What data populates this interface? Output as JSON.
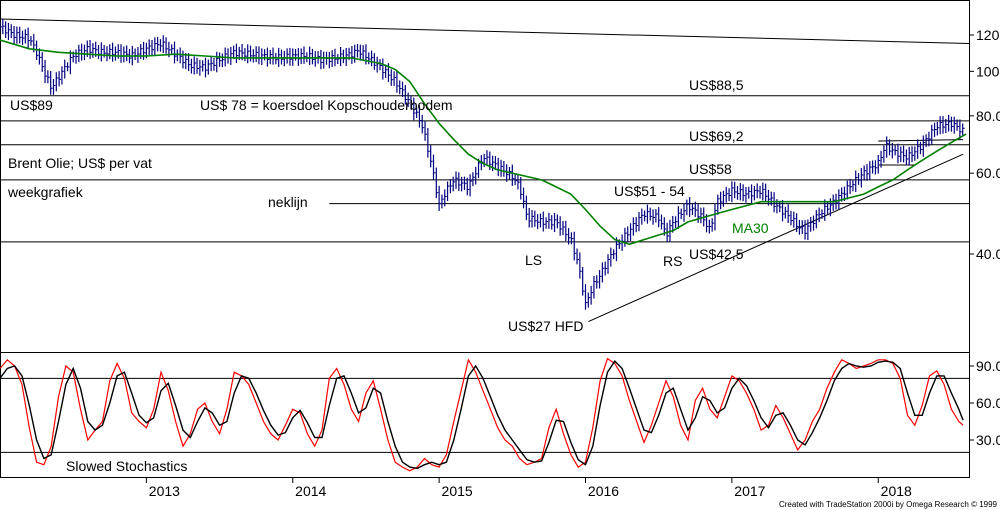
{
  "chart_data": [
    {
      "type": "line",
      "y_scale": "log",
      "ylim": [
        25,
        140
      ],
      "y_ticks": [
        "120",
        "100",
        "80.0",
        "60.0",
        "40.0"
      ],
      "y_tick_values": [
        120,
        100,
        80,
        60,
        40
      ],
      "x_ticks": [
        "2013",
        "2014",
        "2015",
        "2016",
        "2017",
        "2018"
      ],
      "x_tick_values": [
        2013,
        2014,
        2015,
        2016,
        2017,
        2018
      ],
      "xlim": [
        2012.0,
        2018.62
      ],
      "grid": false,
      "series": [
        {
          "name": "",
          "style": "price-bars",
          "color": "#000080",
          "x": [
            2012.0,
            2012.1,
            2012.2,
            2012.25,
            2012.3,
            2012.35,
            2012.4,
            2012.5,
            2012.6,
            2012.7,
            2012.8,
            2012.9,
            2013.0,
            2013.1,
            2013.2,
            2013.3,
            2013.4,
            2013.5,
            2013.6,
            2013.7,
            2013.8,
            2013.9,
            2014.0,
            2014.1,
            2014.2,
            2014.3,
            2014.4,
            2014.45,
            2014.5,
            2014.6,
            2014.7,
            2014.8,
            2014.88,
            2014.95,
            2015.0,
            2015.05,
            2015.1,
            2015.2,
            2015.3,
            2015.4,
            2015.5,
            2015.55,
            2015.6,
            2015.7,
            2015.8,
            2015.9,
            2015.95,
            2016.0,
            2016.05,
            2016.1,
            2016.2,
            2016.3,
            2016.4,
            2016.5,
            2016.55,
            2016.6,
            2016.7,
            2016.8,
            2016.85,
            2016.9,
            2017.0,
            2017.1,
            2017.2,
            2017.3,
            2017.4,
            2017.45,
            2017.5,
            2017.6,
            2017.7,
            2017.8,
            2017.9,
            2018.0,
            2018.05,
            2018.1,
            2018.2,
            2018.3,
            2018.4,
            2018.5,
            2018.58
          ],
          "values": [
            125,
            120,
            118,
            110,
            100,
            92,
            97,
            108,
            112,
            110,
            110,
            108,
            112,
            115,
            109,
            103,
            102,
            106,
            110,
            109,
            108,
            107,
            108,
            108,
            106,
            107,
            109,
            111,
            108,
            102,
            95,
            85,
            77,
            62,
            51,
            55,
            58,
            56,
            65,
            62,
            59,
            56,
            48,
            47,
            47,
            43,
            38,
            31,
            34,
            36,
            41,
            45,
            49,
            48,
            44,
            47,
            51,
            48,
            45,
            52,
            55,
            54,
            55,
            51,
            48,
            46,
            45,
            49,
            52,
            56,
            60,
            63,
            69,
            67,
            65,
            69,
            76,
            77,
            74
          ]
        },
        {
          "name": "MA30",
          "color": "#008000",
          "x": [
            2012.0,
            2012.2,
            2012.4,
            2012.6,
            2012.8,
            2013.0,
            2013.2,
            2013.4,
            2013.6,
            2013.8,
            2014.0,
            2014.2,
            2014.4,
            2014.6,
            2014.7,
            2014.8,
            2014.9,
            2015.0,
            2015.1,
            2015.2,
            2015.3,
            2015.4,
            2015.5,
            2015.6,
            2015.7,
            2015.8,
            2015.9,
            2016.0,
            2016.1,
            2016.2,
            2016.3,
            2016.4,
            2016.5,
            2016.6,
            2016.7,
            2016.8,
            2016.9,
            2017.0,
            2017.1,
            2017.2,
            2017.3,
            2017.4,
            2017.5,
            2017.6,
            2017.7,
            2017.8,
            2017.9,
            2018.0,
            2018.1,
            2018.2,
            2018.3,
            2018.4,
            2018.5,
            2018.6
          ],
          "values": [
            117,
            112,
            110,
            109,
            108,
            108,
            109,
            108,
            107,
            107,
            107,
            107,
            107,
            104,
            101,
            95,
            85,
            77,
            71,
            66,
            63,
            61,
            60,
            59,
            58,
            56,
            54,
            50,
            46,
            43,
            42,
            43,
            44,
            45,
            47,
            48,
            49,
            50,
            51,
            52,
            52,
            52,
            52,
            52,
            52,
            53,
            54,
            56,
            58,
            61,
            64,
            67,
            70,
            73
          ]
        },
        {
          "name": "",
          "style": "horizontal-line",
          "color": "#000000",
          "x": [
            2012.0,
            2018.62
          ],
          "values": [
            88.5,
            88.5
          ]
        },
        {
          "name": "",
          "style": "horizontal-line",
          "color": "#000000",
          "x": [
            2012.0,
            2018.62
          ],
          "values": [
            78,
            78
          ]
        },
        {
          "name": "",
          "style": "horizontal-line",
          "color": "#000000",
          "x": [
            2012.0,
            2018.62
          ],
          "values": [
            69.2,
            69.2
          ]
        },
        {
          "name": "",
          "style": "horizontal-line",
          "color": "#000000",
          "x": [
            2012.0,
            2018.62
          ],
          "values": [
            58,
            58
          ]
        },
        {
          "name": "",
          "style": "horizontal-line",
          "color": "#000000",
          "x": [
            2014.25,
            2018.62
          ],
          "values": [
            51.5,
            51.5
          ]
        },
        {
          "name": "",
          "style": "horizontal-line",
          "color": "#000000",
          "x": [
            2012.0,
            2018.62
          ],
          "values": [
            42.5,
            42.5
          ]
        },
        {
          "name": "",
          "style": "trend-line",
          "color": "#000000",
          "x": [
            2012.0,
            2018.62
          ],
          "values": [
            130,
            115
          ]
        },
        {
          "name": "",
          "style": "trend-line",
          "color": "#000000",
          "x": [
            2016.02,
            2018.58
          ],
          "values": [
            28.5,
            66
          ]
        },
        {
          "name": "",
          "style": "trend-line",
          "color": "#000000",
          "x": [
            2018.0,
            2018.58
          ],
          "values": [
            70.5,
            71
          ]
        },
        {
          "name": "",
          "style": "trend-line",
          "color": "#000000",
          "x": [
            2018.0,
            2018.25
          ],
          "values": [
            62.5,
            62.5
          ]
        }
      ],
      "annotations": [
        {
          "text": "US$89"
        },
        {
          "text": "US$ 78 = koersdoel Kopschouderbodem"
        },
        {
          "text": "Brent Olie; US$ per vat"
        },
        {
          "text": "weekgrafiek"
        },
        {
          "text": "neklijn"
        },
        {
          "text": "US$88,5"
        },
        {
          "text": "US$69,2"
        },
        {
          "text": "US$58"
        },
        {
          "text": "US$51 - 54"
        },
        {
          "text": "MA30"
        },
        {
          "text": "US$42,5"
        },
        {
          "text": "LS"
        },
        {
          "text": "RS"
        },
        {
          "text": "US$27 HFD"
        }
      ]
    },
    {
      "type": "line",
      "ylim": [
        0,
        100
      ],
      "y_ticks": [
        "90.0",
        "60.0",
        "30.0"
      ],
      "y_tick_values": [
        90,
        60,
        30
      ],
      "xlim": [
        2012.0,
        2018.62
      ],
      "levels": [
        80,
        20
      ],
      "series": [
        {
          "name": "",
          "color": "#ff0000",
          "x": [
            2012.0,
            2012.05,
            2012.1,
            2012.15,
            2012.2,
            2012.25,
            2012.3,
            2012.35,
            2012.4,
            2012.45,
            2012.5,
            2012.55,
            2012.6,
            2012.65,
            2012.7,
            2012.75,
            2012.8,
            2012.85,
            2012.9,
            2012.95,
            2013.0,
            2013.05,
            2013.1,
            2013.15,
            2013.2,
            2013.25,
            2013.3,
            2013.35,
            2013.4,
            2013.45,
            2013.5,
            2013.55,
            2013.6,
            2013.65,
            2013.7,
            2013.75,
            2013.8,
            2013.85,
            2013.9,
            2013.95,
            2014.0,
            2014.05,
            2014.1,
            2014.15,
            2014.2,
            2014.25,
            2014.3,
            2014.35,
            2014.4,
            2014.45,
            2014.5,
            2014.55,
            2014.6,
            2014.65,
            2014.7,
            2014.75,
            2014.8,
            2014.85,
            2014.9,
            2014.95,
            2015.0,
            2015.05,
            2015.1,
            2015.15,
            2015.2,
            2015.25,
            2015.3,
            2015.35,
            2015.4,
            2015.45,
            2015.5,
            2015.55,
            2015.6,
            2015.65,
            2015.7,
            2015.75,
            2015.8,
            2015.85,
            2015.9,
            2015.95,
            2016.0,
            2016.05,
            2016.1,
            2016.15,
            2016.2,
            2016.25,
            2016.3,
            2016.35,
            2016.4,
            2016.45,
            2016.5,
            2016.55,
            2016.6,
            2016.65,
            2016.7,
            2016.75,
            2016.8,
            2016.85,
            2016.9,
            2016.95,
            2017.0,
            2017.05,
            2017.1,
            2017.15,
            2017.2,
            2017.25,
            2017.3,
            2017.35,
            2017.4,
            2017.45,
            2017.5,
            2017.55,
            2017.6,
            2017.65,
            2017.7,
            2017.75,
            2017.8,
            2017.85,
            2017.9,
            2017.95,
            2018.0,
            2018.05,
            2018.1,
            2018.15,
            2018.2,
            2018.25,
            2018.3,
            2018.35,
            2018.4,
            2018.45,
            2018.5,
            2018.55,
            2018.58
          ],
          "values": [
            88,
            95,
            90,
            75,
            40,
            12,
            10,
            25,
            65,
            90,
            85,
            55,
            30,
            38,
            45,
            78,
            92,
            80,
            52,
            45,
            40,
            55,
            85,
            70,
            45,
            25,
            35,
            55,
            60,
            45,
            35,
            55,
            85,
            82,
            75,
            60,
            45,
            35,
            30,
            42,
            55,
            52,
            35,
            25,
            38,
            80,
            88,
            75,
            55,
            45,
            68,
            78,
            55,
            30,
            12,
            8,
            5,
            8,
            15,
            10,
            8,
            18,
            45,
            70,
            95,
            85,
            70,
            55,
            40,
            30,
            25,
            15,
            10,
            12,
            15,
            40,
            55,
            35,
            18,
            8,
            12,
            40,
            78,
            96,
            92,
            82,
            62,
            45,
            28,
            42,
            60,
            78,
            65,
            42,
            30,
            62,
            72,
            55,
            48,
            65,
            82,
            78,
            68,
            55,
            38,
            42,
            58,
            48,
            35,
            22,
            30,
            45,
            55,
            72,
            85,
            95,
            92,
            88,
            90,
            92,
            95,
            95,
            92,
            80,
            50,
            42,
            58,
            82,
            86,
            75,
            55,
            45,
            42
          ]
        },
        {
          "name": "",
          "color": "#000000",
          "x": [
            2012.0,
            2012.05,
            2012.1,
            2012.15,
            2012.2,
            2012.25,
            2012.3,
            2012.35,
            2012.4,
            2012.45,
            2012.5,
            2012.55,
            2012.6,
            2012.65,
            2012.7,
            2012.75,
            2012.8,
            2012.85,
            2012.9,
            2012.95,
            2013.0,
            2013.05,
            2013.1,
            2013.15,
            2013.2,
            2013.25,
            2013.3,
            2013.35,
            2013.4,
            2013.45,
            2013.5,
            2013.55,
            2013.6,
            2013.65,
            2013.7,
            2013.75,
            2013.8,
            2013.85,
            2013.9,
            2013.95,
            2014.0,
            2014.05,
            2014.1,
            2014.15,
            2014.2,
            2014.25,
            2014.3,
            2014.35,
            2014.4,
            2014.45,
            2014.5,
            2014.55,
            2014.6,
            2014.65,
            2014.7,
            2014.75,
            2014.8,
            2014.85,
            2014.9,
            2014.95,
            2015.0,
            2015.05,
            2015.1,
            2015.15,
            2015.2,
            2015.25,
            2015.3,
            2015.35,
            2015.4,
            2015.45,
            2015.5,
            2015.55,
            2015.6,
            2015.65,
            2015.7,
            2015.75,
            2015.8,
            2015.85,
            2015.9,
            2015.95,
            2016.0,
            2016.05,
            2016.1,
            2016.15,
            2016.2,
            2016.25,
            2016.3,
            2016.35,
            2016.4,
            2016.45,
            2016.5,
            2016.55,
            2016.6,
            2016.65,
            2016.7,
            2016.75,
            2016.8,
            2016.85,
            2016.9,
            2016.95,
            2017.0,
            2017.05,
            2017.1,
            2017.15,
            2017.2,
            2017.25,
            2017.3,
            2017.35,
            2017.4,
            2017.45,
            2017.5,
            2017.55,
            2017.6,
            2017.65,
            2017.7,
            2017.75,
            2017.8,
            2017.85,
            2017.9,
            2017.95,
            2018.0,
            2018.05,
            2018.1,
            2018.15,
            2018.2,
            2018.25,
            2018.3,
            2018.35,
            2018.4,
            2018.45,
            2018.5,
            2018.55,
            2018.58
          ],
          "values": [
            80,
            88,
            90,
            82,
            58,
            30,
            15,
            18,
            45,
            75,
            88,
            72,
            45,
            38,
            42,
            60,
            82,
            85,
            68,
            50,
            44,
            48,
            70,
            76,
            58,
            38,
            32,
            45,
            56,
            52,
            42,
            45,
            68,
            82,
            80,
            68,
            54,
            42,
            34,
            36,
            48,
            54,
            44,
            32,
            32,
            58,
            80,
            82,
            68,
            52,
            56,
            72,
            68,
            45,
            25,
            12,
            8,
            7,
            10,
            12,
            10,
            12,
            30,
            55,
            82,
            90,
            80,
            65,
            50,
            38,
            30,
            22,
            14,
            12,
            13,
            28,
            46,
            45,
            28,
            14,
            10,
            25,
            58,
            85,
            94,
            88,
            72,
            55,
            38,
            36,
            50,
            68,
            72,
            55,
            38,
            48,
            65,
            62,
            52,
            56,
            72,
            80,
            74,
            62,
            48,
            40,
            50,
            52,
            42,
            30,
            26,
            36,
            48,
            62,
            78,
            88,
            92,
            90,
            89,
            90,
            93,
            94,
            93,
            88,
            68,
            50,
            50,
            68,
            82,
            82,
            68,
            55,
            46
          ]
        }
      ],
      "annotations": [
        {
          "text": "Slowed Stochastics"
        }
      ]
    }
  ],
  "footer": {
    "credit": "Created with TradeStation 2000i by Omega Research © 1999"
  }
}
